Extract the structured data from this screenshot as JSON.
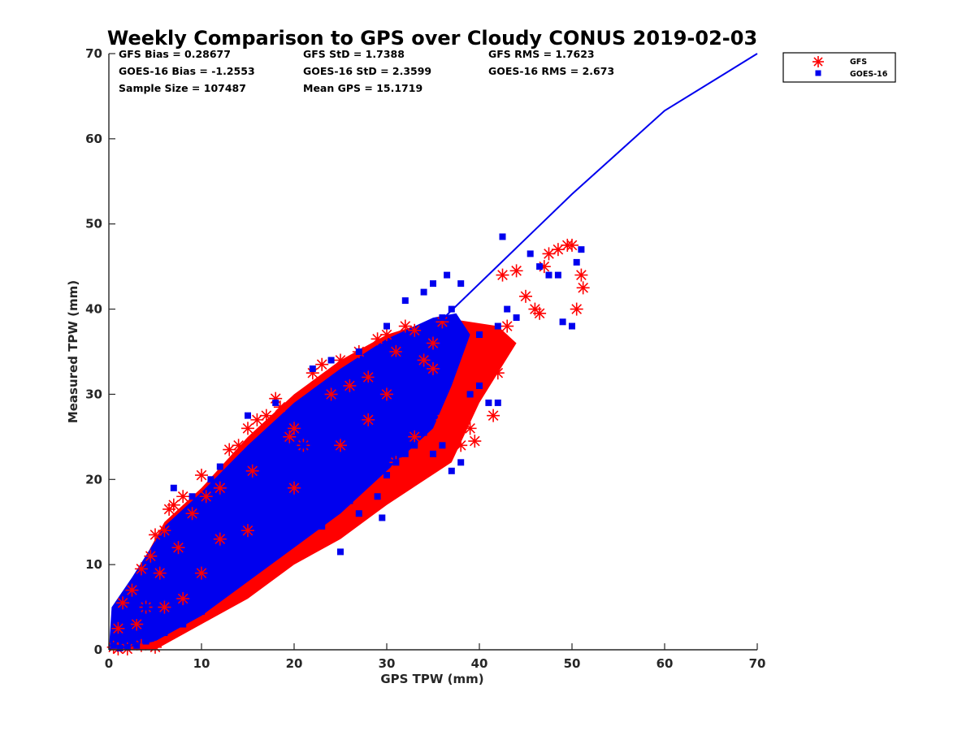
{
  "chart_data": {
    "type": "scatter",
    "title": "Weekly Comparison to GPS over Cloudy CONUS 2019-02-03",
    "xlabel": "GPS TPW (mm)",
    "ylabel": "Measured TPW (mm)",
    "xlim": [
      0,
      70
    ],
    "ylim": [
      0,
      70
    ],
    "xticks": [
      0,
      10,
      20,
      30,
      40,
      50,
      60,
      70
    ],
    "yticks": [
      0,
      10,
      20,
      30,
      40,
      50,
      60,
      70
    ],
    "grid": false,
    "legend_position": "outside-top-right",
    "stats": [
      [
        "GFS Bias = 0.28677",
        "GFS StD = 1.7388",
        "GFS RMS = 1.7623"
      ],
      [
        "GOES-16 Bias = -1.2553",
        "GOES-16 StD = 2.3599",
        "GOES-16 RMS = 2.673"
      ],
      [
        "Sample Size = 107487",
        "Mean GPS = 15.1719"
      ]
    ],
    "reference_line": {
      "color": "#0000ee",
      "points": [
        [
          0,
          0
        ],
        [
          36,
          38.8
        ],
        [
          50,
          53.5
        ],
        [
          60,
          63.3
        ],
        [
          70,
          70
        ]
      ]
    },
    "series": [
      {
        "name": "GFS",
        "marker": "asterisk",
        "color": "#ff0000",
        "points": [
          [
            0.5,
            0.3
          ],
          [
            1,
            2.5
          ],
          [
            1.5,
            5.5
          ],
          [
            2.5,
            7
          ],
          [
            3,
            3
          ],
          [
            3.5,
            9.5
          ],
          [
            4,
            5
          ],
          [
            4.5,
            11
          ],
          [
            5,
            13.5
          ],
          [
            5.5,
            9
          ],
          [
            6,
            14
          ],
          [
            6.5,
            16.5
          ],
          [
            7,
            17
          ],
          [
            7.5,
            12
          ],
          [
            8,
            18
          ],
          [
            9,
            16
          ],
          [
            10,
            20.5
          ],
          [
            10.5,
            18
          ],
          [
            12,
            19
          ],
          [
            13,
            23.5
          ],
          [
            14,
            24
          ],
          [
            15,
            26
          ],
          [
            15.5,
            21
          ],
          [
            16,
            27
          ],
          [
            17,
            27.5
          ],
          [
            18,
            29.5
          ],
          [
            18.5,
            28.5
          ],
          [
            19.5,
            25
          ],
          [
            20,
            26
          ],
          [
            21,
            24
          ],
          [
            22,
            32.5
          ],
          [
            23,
            33.5
          ],
          [
            24,
            30
          ],
          [
            25,
            34
          ],
          [
            26,
            31
          ],
          [
            27,
            35
          ],
          [
            28,
            32
          ],
          [
            29,
            36.5
          ],
          [
            30,
            37
          ],
          [
            31,
            35
          ],
          [
            32,
            38
          ],
          [
            33,
            37.5
          ],
          [
            34,
            34
          ],
          [
            35,
            36
          ],
          [
            36,
            38.5
          ],
          [
            37,
            29
          ],
          [
            38,
            24
          ],
          [
            39,
            26
          ],
          [
            40,
            36.5
          ],
          [
            41,
            34
          ],
          [
            41.5,
            27.5
          ],
          [
            42,
            32.5
          ],
          [
            42.5,
            44
          ],
          [
            43,
            38
          ],
          [
            44,
            44.5
          ],
          [
            45,
            41.5
          ],
          [
            46,
            40
          ],
          [
            46.5,
            39.5
          ],
          [
            47,
            45
          ],
          [
            47.5,
            46.5
          ],
          [
            48.5,
            47
          ],
          [
            49.5,
            47.5
          ],
          [
            50,
            47.5
          ],
          [
            50.5,
            40
          ],
          [
            51,
            44
          ],
          [
            51.2,
            42.5
          ],
          [
            20,
            19
          ],
          [
            25,
            24
          ],
          [
            30,
            30
          ],
          [
            15,
            14
          ],
          [
            10,
            9
          ],
          [
            8,
            6
          ],
          [
            6,
            5
          ],
          [
            12,
            13
          ],
          [
            35,
            33
          ],
          [
            28,
            27
          ],
          [
            5,
            0.3
          ],
          [
            3.5,
            0.5
          ],
          [
            2,
            0.1
          ],
          [
            1,
            0.1
          ],
          [
            31,
            22
          ],
          [
            33,
            25
          ],
          [
            38,
            28
          ],
          [
            39.5,
            24.5
          ],
          [
            36,
            27
          ]
        ]
      },
      {
        "name": "GOES-16",
        "marker": "square",
        "color": "#0000ee",
        "points": [
          [
            0.5,
            0.5
          ],
          [
            1,
            1.5
          ],
          [
            2,
            3
          ],
          [
            3,
            4
          ],
          [
            4,
            5
          ],
          [
            5,
            7
          ],
          [
            6,
            8
          ],
          [
            7,
            9
          ],
          [
            8,
            10
          ],
          [
            9,
            11
          ],
          [
            10,
            13
          ],
          [
            11,
            14
          ],
          [
            12,
            15
          ],
          [
            13,
            16
          ],
          [
            14,
            17
          ],
          [
            15,
            18
          ],
          [
            16,
            19
          ],
          [
            17,
            20
          ],
          [
            18,
            21
          ],
          [
            19,
            22
          ],
          [
            20,
            23
          ],
          [
            21,
            24
          ],
          [
            22,
            25
          ],
          [
            23,
            26
          ],
          [
            24,
            27
          ],
          [
            25,
            28
          ],
          [
            26,
            29
          ],
          [
            27,
            30
          ],
          [
            28,
            31
          ],
          [
            29,
            32
          ],
          [
            30,
            33
          ],
          [
            31,
            34
          ],
          [
            32,
            35
          ],
          [
            33,
            36
          ],
          [
            34,
            37
          ],
          [
            35,
            38
          ],
          [
            36,
            39
          ],
          [
            37,
            40
          ],
          [
            7,
            19
          ],
          [
            9,
            18
          ],
          [
            11,
            20
          ],
          [
            12,
            21.5
          ],
          [
            15,
            27.5
          ],
          [
            18,
            29
          ],
          [
            22,
            33
          ],
          [
            24,
            34
          ],
          [
            27,
            35
          ],
          [
            30,
            38
          ],
          [
            32,
            41
          ],
          [
            34,
            42
          ],
          [
            35,
            43
          ],
          [
            36.5,
            44
          ],
          [
            38,
            43
          ],
          [
            42.5,
            48.5
          ],
          [
            45.5,
            46.5
          ],
          [
            46.5,
            45
          ],
          [
            47.5,
            44
          ],
          [
            48.5,
            44
          ],
          [
            49,
            38.5
          ],
          [
            50,
            38
          ],
          [
            50.5,
            45.5
          ],
          [
            51,
            47
          ],
          [
            43,
            40
          ],
          [
            44,
            39
          ],
          [
            40,
            37
          ],
          [
            42,
            38
          ],
          [
            12,
            7
          ],
          [
            14,
            8
          ],
          [
            16,
            10
          ],
          [
            18,
            12
          ],
          [
            20,
            13
          ],
          [
            22,
            15
          ],
          [
            24,
            16.5
          ],
          [
            26,
            17.5
          ],
          [
            27.5,
            20
          ],
          [
            29,
            18
          ],
          [
            30,
            20.5
          ],
          [
            31,
            22
          ],
          [
            32,
            23
          ],
          [
            33,
            24
          ],
          [
            34,
            25.5
          ],
          [
            35,
            23
          ],
          [
            36,
            24
          ],
          [
            37,
            21
          ],
          [
            38,
            22
          ],
          [
            39,
            30
          ],
          [
            40,
            31
          ],
          [
            41,
            29
          ],
          [
            42,
            29
          ],
          [
            8,
            3
          ],
          [
            6,
            2
          ],
          [
            10,
            4.5
          ],
          [
            4,
            1
          ],
          [
            3,
            0.5
          ],
          [
            2,
            0.3
          ],
          [
            1.2,
            0.2
          ],
          [
            23,
            14.5
          ],
          [
            25,
            11.5
          ],
          [
            29.5,
            15.5
          ],
          [
            27,
            16
          ],
          [
            21,
            18
          ],
          [
            19,
            16
          ],
          [
            17,
            15
          ],
          [
            15,
            12
          ],
          [
            13,
            11
          ],
          [
            11,
            9
          ],
          [
            9,
            7
          ]
        ]
      }
    ]
  }
}
